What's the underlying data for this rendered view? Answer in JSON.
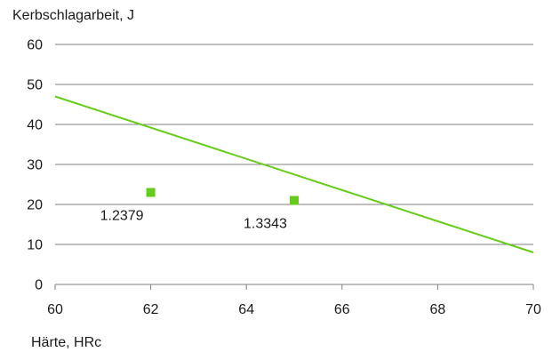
{
  "chart_data": {
    "type": "scatter",
    "xlabel": "Härte, HRc",
    "ylabel": "Kerbschlagarbeit, J",
    "xlim": [
      60,
      70
    ],
    "ylim": [
      0,
      60
    ],
    "xticks": [
      60,
      62,
      64,
      66,
      68,
      70
    ],
    "yticks": [
      0,
      10,
      20,
      30,
      40,
      50,
      60
    ],
    "grid": "horizontal",
    "points": [
      {
        "label": "1.2379",
        "x": 62,
        "y": 23
      },
      {
        "label": "1.3343",
        "x": 65,
        "y": 21
      }
    ],
    "trendline": {
      "x": [
        60,
        70
      ],
      "y": [
        47,
        8
      ]
    },
    "colors": {
      "points": "#66cc1a",
      "trendline": "#66cc1a",
      "grid": "#7f7f7f"
    }
  }
}
